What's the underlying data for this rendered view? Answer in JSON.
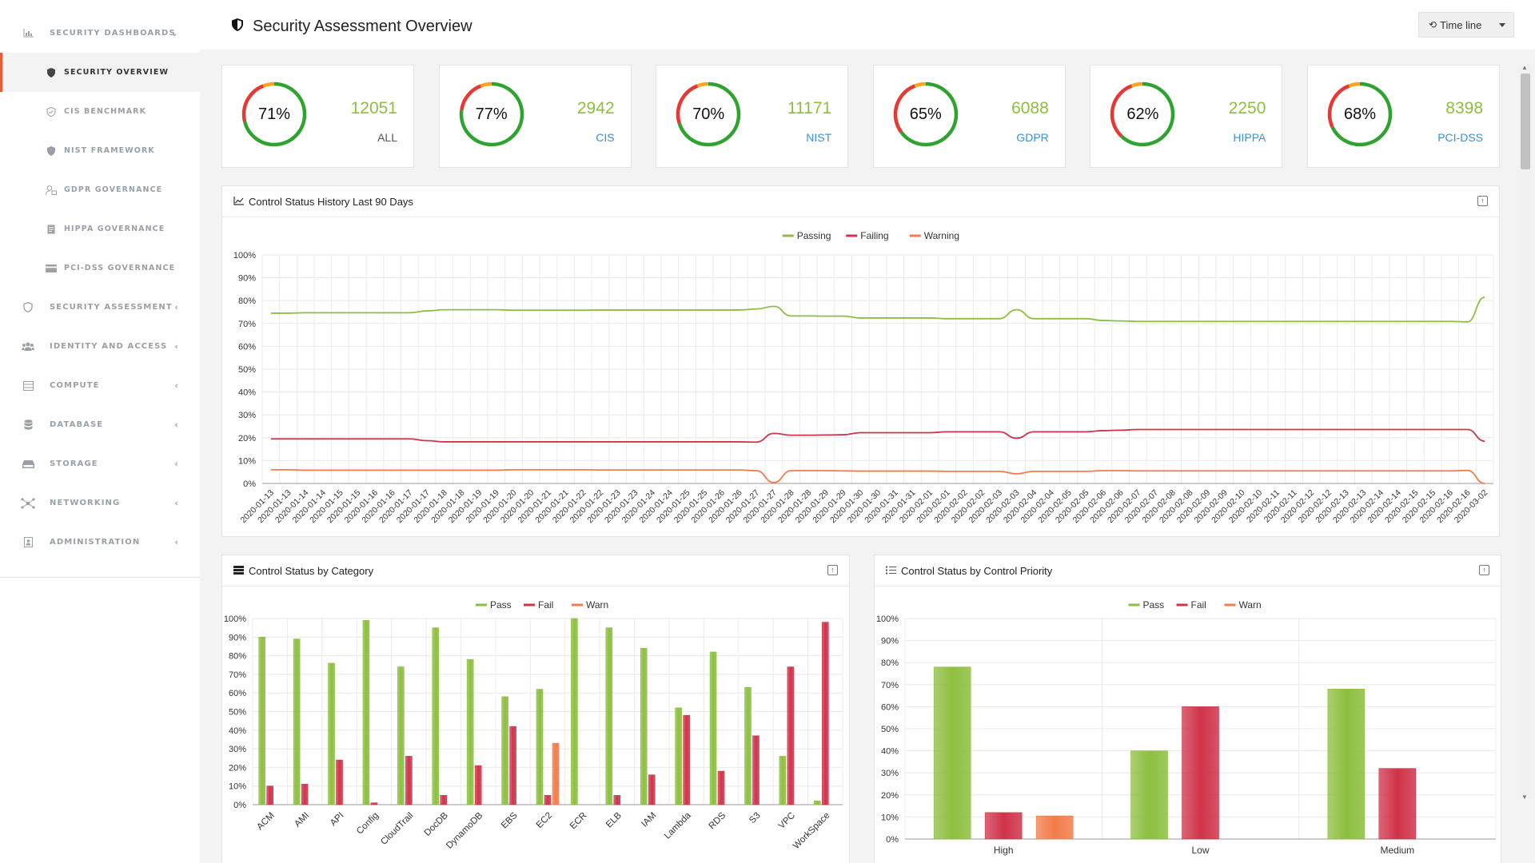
{
  "sidebar": {
    "items": [
      {
        "label": "SECURITY DASHBOARDS",
        "icon": "bar-chart-icon",
        "chevron": "⌄",
        "sub": false
      },
      {
        "label": "SECURITY OVERVIEW",
        "icon": "shield-icon",
        "sub": true,
        "active": true
      },
      {
        "label": "CIS BENCHMARK",
        "icon": "check-shield-icon",
        "sub": true
      },
      {
        "label": "NIST FRAMEWORK",
        "icon": "shield-half-icon",
        "sub": true
      },
      {
        "label": "GDPR GOVERNANCE",
        "icon": "user-lock-icon",
        "sub": true
      },
      {
        "label": "HIPPA GOVERNANCE",
        "icon": "document-icon",
        "sub": true
      },
      {
        "label": "PCI-DSS GOVERNANCE",
        "icon": "credit-card-icon",
        "sub": true
      },
      {
        "label": "SECURITY ASSESSMENT",
        "icon": "shield-outline-icon",
        "chevron": "‹"
      },
      {
        "label": "IDENTITY AND ACCESS",
        "icon": "users-icon",
        "chevron": "‹"
      },
      {
        "label": "COMPUTE",
        "icon": "server-icon",
        "chevron": "‹"
      },
      {
        "label": "DATABASE",
        "icon": "database-icon",
        "chevron": "‹"
      },
      {
        "label": "STORAGE",
        "icon": "hard-drive-icon",
        "chevron": "‹"
      },
      {
        "label": "NETWORKING",
        "icon": "network-icon",
        "chevron": "‹"
      },
      {
        "label": "ADMINISTRATION",
        "icon": "admin-icon",
        "chevron": "‹"
      }
    ]
  },
  "header": {
    "title": "Security Assessment Overview",
    "timeline_label": "Time line"
  },
  "kpis": [
    {
      "percent": 71,
      "percent_label": "71%",
      "count": "12051",
      "label": "ALL"
    },
    {
      "percent": 77,
      "percent_label": "77%",
      "count": "2942",
      "label": "CIS"
    },
    {
      "percent": 70,
      "percent_label": "70%",
      "count": "11171",
      "label": "NIST"
    },
    {
      "percent": 65,
      "percent_label": "65%",
      "count": "6088",
      "label": "GDPR"
    },
    {
      "percent": 62,
      "percent_label": "62%",
      "count": "2250",
      "label": "HIPPA"
    },
    {
      "percent": 68,
      "percent_label": "68%",
      "count": "8398",
      "label": "PCI-DSS"
    }
  ],
  "colors": {
    "pass": "#8dbf3f",
    "fail": "#d0334a",
    "warn": "#f27c4a",
    "ring_green": "#2fa32f",
    "ring_red": "#e53935",
    "ring_orange": "#f5a623",
    "accent": "#f0583a"
  },
  "panels": {
    "history_title": "Control Status History Last 90 Days",
    "category_title": "Control Status by Category",
    "priority_title": "Control Status by Control Priority"
  },
  "chart_data": [
    {
      "type": "line",
      "title": "Control Status History Last 90 Days",
      "legend": "top",
      "yticks": [
        "0%",
        "10%",
        "20%",
        "30%",
        "40%",
        "50%",
        "60%",
        "70%",
        "80%",
        "90%",
        "100%"
      ],
      "ylim": [
        0,
        100
      ],
      "x": [
        "2020-01-13",
        "2020-01-13",
        "2020-01-14",
        "2020-01-14",
        "2020-01-15",
        "2020-01-15",
        "2020-01-16",
        "2020-01-16",
        "2020-01-17",
        "2020-01-17",
        "2020-01-18",
        "2020-01-18",
        "2020-01-19",
        "2020-01-19",
        "2020-01-20",
        "2020-01-20",
        "2020-01-21",
        "2020-01-21",
        "2020-01-22",
        "2020-01-22",
        "2020-01-23",
        "2020-01-23",
        "2020-01-24",
        "2020-01-24",
        "2020-01-25",
        "2020-01-25",
        "2020-01-26",
        "2020-01-26",
        "2020-01-27",
        "2020-01-27",
        "2020-01-28",
        "2020-01-28",
        "2020-01-29",
        "2020-01-29",
        "2020-01-30",
        "2020-01-30",
        "2020-01-31",
        "2020-01-31",
        "2020-02-01",
        "2020-02-01",
        "2020-02-02",
        "2020-02-02",
        "2020-02-03",
        "2020-02-03",
        "2020-02-04",
        "2020-02-04",
        "2020-02-05",
        "2020-02-05",
        "2020-02-06",
        "2020-02-06",
        "2020-02-07",
        "2020-02-07",
        "2020-02-08",
        "2020-02-08",
        "2020-02-09",
        "2020-02-09",
        "2020-02-10",
        "2020-02-10",
        "2020-02-11",
        "2020-02-11",
        "2020-02-12",
        "2020-02-12",
        "2020-02-13",
        "2020-02-13",
        "2020-02-14",
        "2020-02-14",
        "2020-02-15",
        "2020-02-15",
        "2020-02-16",
        "2020-02-16",
        "2020-03-02"
      ],
      "series": [
        {
          "name": "Passing",
          "color": "#8dbf3f",
          "values": [
            74.5,
            74.5,
            74.7,
            74.7,
            74.7,
            74.7,
            74.7,
            74.7,
            74.7,
            75.5,
            76,
            76,
            76,
            76,
            75.8,
            75.8,
            75.8,
            75.8,
            75.8,
            75.9,
            75.9,
            75.9,
            75.9,
            75.9,
            75.9,
            75.9,
            75.9,
            75.9,
            76.3,
            77.5,
            73.3,
            73.3,
            73.2,
            73.2,
            72.4,
            72.4,
            72.4,
            72.4,
            72.4,
            72.1,
            72.1,
            72.1,
            72.1,
            76,
            72.1,
            72.1,
            72.1,
            72.1,
            71.3,
            71.1,
            70.9,
            70.9,
            70.9,
            70.9,
            70.9,
            70.9,
            70.9,
            70.9,
            70.9,
            70.9,
            70.9,
            70.9,
            70.9,
            70.9,
            70.9,
            70.9,
            70.9,
            70.9,
            70.9,
            70.7,
            81.5
          ]
        },
        {
          "name": "Failing",
          "color": "#d0334a",
          "values": [
            19.5,
            19.5,
            19.5,
            19.5,
            19.5,
            19.5,
            19.5,
            19.5,
            19.5,
            18.7,
            18.2,
            18.2,
            18.2,
            18.2,
            18.2,
            18.2,
            18.2,
            18.2,
            18.2,
            18.2,
            18.2,
            18.2,
            18.2,
            18.2,
            18.2,
            18.2,
            18.2,
            18.2,
            18.1,
            21.9,
            21.1,
            21.1,
            21.2,
            21.3,
            22.2,
            22.2,
            22.2,
            22.2,
            22.2,
            22.6,
            22.6,
            22.6,
            22.6,
            19.8,
            22.6,
            22.6,
            22.6,
            22.6,
            23.1,
            23.3,
            23.6,
            23.6,
            23.6,
            23.6,
            23.6,
            23.6,
            23.6,
            23.6,
            23.6,
            23.6,
            23.6,
            23.6,
            23.6,
            23.6,
            23.6,
            23.6,
            23.6,
            23.6,
            23.6,
            23.6,
            18.5
          ]
        },
        {
          "name": "Warning",
          "color": "#f27c4a",
          "values": [
            6,
            6,
            5.8,
            5.8,
            5.8,
            5.8,
            5.8,
            5.8,
            5.8,
            5.8,
            5.8,
            5.8,
            5.8,
            5.8,
            6,
            6,
            6,
            6,
            6,
            5.9,
            5.9,
            5.9,
            5.9,
            5.9,
            5.9,
            5.9,
            5.9,
            5.9,
            5.6,
            0.4,
            5.6,
            5.6,
            5.6,
            5.5,
            5.4,
            5.4,
            5.4,
            5.4,
            5.4,
            5.3,
            5.3,
            5.3,
            5.3,
            4.2,
            5.3,
            5.3,
            5.3,
            5.3,
            5.6,
            5.6,
            5.5,
            5.5,
            5.5,
            5.5,
            5.5,
            5.5,
            5.5,
            5.5,
            5.5,
            5.5,
            5.5,
            5.5,
            5.5,
            5.5,
            5.5,
            5.5,
            5.5,
            5.5,
            5.5,
            5.7,
            0
          ]
        }
      ]
    },
    {
      "type": "bar",
      "title": "Control Status by Category",
      "legend": "top",
      "yticks": [
        "0%",
        "10%",
        "20%",
        "30%",
        "40%",
        "50%",
        "60%",
        "70%",
        "80%",
        "90%",
        "100%"
      ],
      "ylim": [
        0,
        100
      ],
      "categories": [
        "ACM",
        "AMI",
        "API",
        "Config",
        "CloudTrail",
        "DocDB",
        "DynamoDB",
        "EBS",
        "EC2",
        "ECR",
        "ELB",
        "IAM",
        "Lambda",
        "RDS",
        "S3",
        "VPC",
        "WorkSpace"
      ],
      "series": [
        {
          "name": "Pass",
          "color": "#8dbf3f",
          "values": [
            90,
            89,
            76,
            99,
            74,
            95,
            78,
            58,
            62,
            100,
            95,
            84,
            52,
            82,
            63,
            26,
            2
          ]
        },
        {
          "name": "Fail",
          "color": "#d0334a",
          "values": [
            10,
            11,
            24,
            1,
            26,
            5,
            21,
            42,
            5,
            0,
            5,
            16,
            48,
            18,
            37,
            74,
            98
          ]
        },
        {
          "name": "Warn",
          "color": "#f27c4a",
          "values": [
            0,
            0,
            0,
            0,
            0,
            0,
            0,
            0,
            33,
            0,
            0,
            0,
            0,
            0,
            0,
            0,
            0
          ]
        }
      ]
    },
    {
      "type": "bar",
      "title": "Control Status by Control Priority",
      "legend": "top",
      "yticks": [
        "0%",
        "10%",
        "20%",
        "30%",
        "40%",
        "50%",
        "60%",
        "70%",
        "80%",
        "90%",
        "100%"
      ],
      "ylim": [
        0,
        100
      ],
      "categories": [
        "High",
        "Low",
        "Medium"
      ],
      "series": [
        {
          "name": "Pass",
          "color": "#8dbf3f",
          "values": [
            78,
            40,
            68
          ]
        },
        {
          "name": "Fail",
          "color": "#d0334a",
          "values": [
            12,
            60,
            32
          ]
        },
        {
          "name": "Warn",
          "color": "#f27c4a",
          "values": [
            10.5,
            0,
            0
          ]
        }
      ]
    }
  ]
}
